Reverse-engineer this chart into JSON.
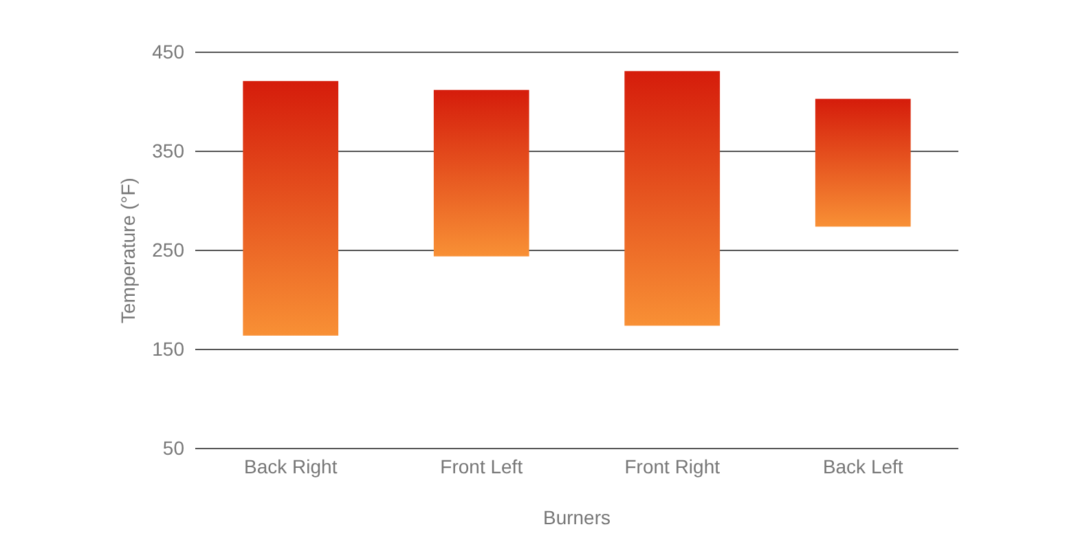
{
  "chart_data": {
    "type": "bar",
    "xlabel": "Burners",
    "ylabel": "Temperature (°F)",
    "categories": [
      "Back Right",
      "Front Left",
      "Front Right",
      "Back Left"
    ],
    "base": [
      164,
      244,
      174,
      274
    ],
    "values": [
      257,
      168,
      257,
      129
    ],
    "color": "#e8461c",
    "ylim": [
      50,
      450
    ],
    "yticks": [
      50,
      150,
      250,
      350,
      450
    ],
    "grid": "y"
  }
}
